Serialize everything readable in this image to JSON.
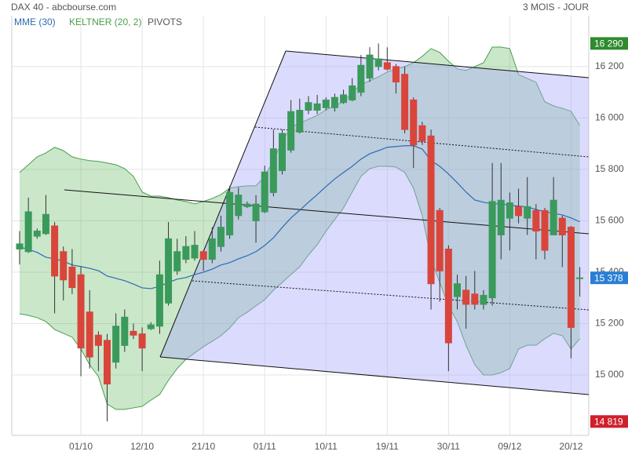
{
  "chart_data": {
    "type": "candlestick",
    "title": "DAX 40 - abcbourse.com",
    "subtitle": "3 MOIS - JOUR",
    "categories": [
      null,
      null,
      null,
      null,
      null,
      null,
      null,
      "01/10",
      null,
      null,
      null,
      null,
      null,
      null,
      "12/10",
      null,
      null,
      null,
      null,
      null,
      null,
      "21/10",
      null,
      null,
      null,
      null,
      null,
      null,
      "01/11",
      null,
      null,
      null,
      null,
      null,
      null,
      "10/11",
      null,
      null,
      null,
      null,
      null,
      null,
      "19/11",
      null,
      null,
      null,
      null,
      null,
      null,
      "30/11",
      null,
      null,
      null,
      null,
      null,
      null,
      "09/12",
      null,
      null,
      null,
      null,
      null,
      null,
      "20/12",
      null
    ],
    "open": [
      15490,
      15480,
      15540,
      15550,
      15580,
      15480,
      15420,
      15390,
      15245,
      15155,
      15135,
      15050,
      15115,
      15170,
      15160,
      15180,
      15190,
      15280,
      15405,
      15450,
      15455,
      15480,
      15450,
      15500,
      15545,
      15620,
      15655,
      15600,
      15635,
      15710,
      15795,
      15875,
      15945,
      16030,
      16030,
      16040,
      16040,
      16060,
      16070,
      16100,
      16155,
      16200,
      16215,
      16200,
      16170,
      16070,
      15970,
      15930,
      15640,
      15490,
      15305,
      15330,
      15315,
      15275,
      15300,
      15545,
      15610,
      15655,
      15610,
      15640,
      15640,
      15545,
      15610,
      15575,
      15375
    ],
    "high": [
      15560,
      15690,
      15570,
      15700,
      15595,
      15500,
      15490,
      15420,
      15330,
      15170,
      15160,
      15240,
      15255,
      15200,
      15185,
      15205,
      15445,
      15595,
      15530,
      15540,
      15560,
      15485,
      15575,
      15620,
      15735,
      15730,
      15675,
      15700,
      15815,
      15955,
      15955,
      16070,
      16075,
      16085,
      16090,
      16080,
      16095,
      16110,
      16155,
      16245,
      16275,
      16290,
      16275,
      16210,
      16200,
      16080,
      15985,
      15955,
      15650,
      15505,
      15390,
      15385,
      15405,
      15330,
      15825,
      15825,
      15710,
      15725,
      15770,
      15665,
      15650,
      15770,
      15620,
      15580,
      15420
    ],
    "low": [
      15430,
      15475,
      15530,
      15545,
      15240,
      15290,
      15315,
      14995,
      15025,
      15015,
      14819,
      15025,
      15090,
      15140,
      15015,
      15175,
      15160,
      15270,
      15390,
      15435,
      15445,
      15405,
      15435,
      15480,
      15530,
      15605,
      15650,
      15515,
      15630,
      15695,
      15780,
      15865,
      15940,
      16015,
      16015,
      16030,
      16025,
      16055,
      16065,
      16085,
      16140,
      16185,
      16185,
      16095,
      15940,
      15805,
      15895,
      15255,
      15285,
      15015,
      15255,
      15180,
      15255,
      15255,
      15270,
      15450,
      15485,
      15590,
      15545,
      15450,
      15450,
      15545,
      15420,
      15065,
      15305
    ],
    "close": [
      15510,
      15635,
      15560,
      15625,
      15385,
      15370,
      15340,
      15105,
      15070,
      15115,
      14965,
      15190,
      15225,
      15155,
      15105,
      15195,
      15390,
      15530,
      15480,
      15500,
      15505,
      15450,
      15530,
      15575,
      15710,
      15700,
      15665,
      15665,
      15790,
      15880,
      15940,
      16025,
      16030,
      16060,
      16055,
      16070,
      16080,
      16090,
      16125,
      16205,
      16245,
      16230,
      16190,
      16140,
      15955,
      15895,
      15910,
      15355,
      15405,
      15125,
      15355,
      15275,
      15275,
      15310,
      15675,
      15680,
      15670,
      15620,
      15655,
      15560,
      15485,
      15680,
      15545,
      15185,
      15378
    ],
    "up_color": "#3a9a5b",
    "down_color": "#d9453b",
    "indicators": [
      {
        "name": "MME (30)",
        "color": "#2b6cb0",
        "values": [
          15498,
          15489,
          15477,
          15458,
          15452,
          15443,
          15428,
          15422,
          15415,
          15406,
          15385,
          15376,
          15367,
          15354,
          15339,
          15336,
          15345,
          15360,
          15373,
          15379,
          15391,
          15400,
          15412,
          15428,
          15437,
          15452,
          15464,
          15480,
          15504,
          15534,
          15574,
          15611,
          15641,
          15672,
          15702,
          15733,
          15763,
          15788,
          15812,
          15840,
          15861,
          15873,
          15886,
          15889,
          15892,
          15892,
          15879,
          15834,
          15812,
          15782,
          15748,
          15712,
          15681,
          15672,
          15666,
          15666,
          15660,
          15657,
          15654,
          15644,
          15635,
          15629,
          15623,
          15611,
          15596
        ]
      },
      {
        "name": "KELTNER (20, 2)",
        "color": "#4a9e4a",
        "upper": [
          15788,
          15818,
          15849,
          15864,
          15886,
          15873,
          15849,
          15840,
          15834,
          15831,
          15825,
          15818,
          15803,
          15773,
          15712,
          15696,
          15696,
          15690,
          15681,
          15675,
          15666,
          15675,
          15687,
          15702,
          15727,
          15733,
          15736,
          15736,
          15773,
          15834,
          15910,
          15965,
          15980,
          15995,
          16010,
          16032,
          16047,
          16063,
          16099,
          16130,
          16145,
          16160,
          16179,
          16191,
          16200,
          16215,
          16240,
          16270,
          16255,
          16221,
          16191,
          16185,
          16200,
          16215,
          16276,
          16276,
          16270,
          16169,
          16154,
          16139,
          16063,
          16047,
          16038,
          16026,
          15971
        ],
        "lower": [
          15238,
          15232,
          15223,
          15208,
          15177,
          15162,
          15147,
          15101,
          15040,
          14994,
          14887,
          14866,
          14866,
          14872,
          14878,
          14902,
          14924,
          14979,
          15025,
          15061,
          15086,
          15110,
          15131,
          15153,
          15183,
          15223,
          15244,
          15269,
          15293,
          15330,
          15360,
          15391,
          15421,
          15467,
          15507,
          15559,
          15605,
          15650,
          15712,
          15773,
          15803,
          15812,
          15812,
          15809,
          15788,
          15727,
          15620,
          15452,
          15360,
          15269,
          15208,
          15116,
          15040,
          15000,
          15000,
          15009,
          15025,
          15101,
          15116,
          15116,
          15141,
          15162,
          15153,
          15101,
          15141
        ]
      },
      {
        "name": "PIVOTS",
        "color": "#555555"
      }
    ],
    "ylim": [
      14765,
      16398
    ],
    "yticks": [
      {
        "value": 15000,
        "label": "15 000"
      },
      {
        "value": 15200,
        "label": "15 200"
      },
      {
        "value": 15400,
        "label": "15 400"
      },
      {
        "value": 15600,
        "label": "15 600"
      },
      {
        "value": 15800,
        "label": "15 800"
      },
      {
        "value": 16000,
        "label": "16 000"
      },
      {
        "value": 16200,
        "label": "16 200"
      }
    ],
    "markers": [
      {
        "value": 16290,
        "label": "16 290",
        "color": "#2e8b2e"
      },
      {
        "value": 15378,
        "label": "15 378",
        "color": "#2a7fd4"
      },
      {
        "value": 14819,
        "label": "14 819",
        "color": "#d0202a"
      }
    ],
    "grid": true
  }
}
